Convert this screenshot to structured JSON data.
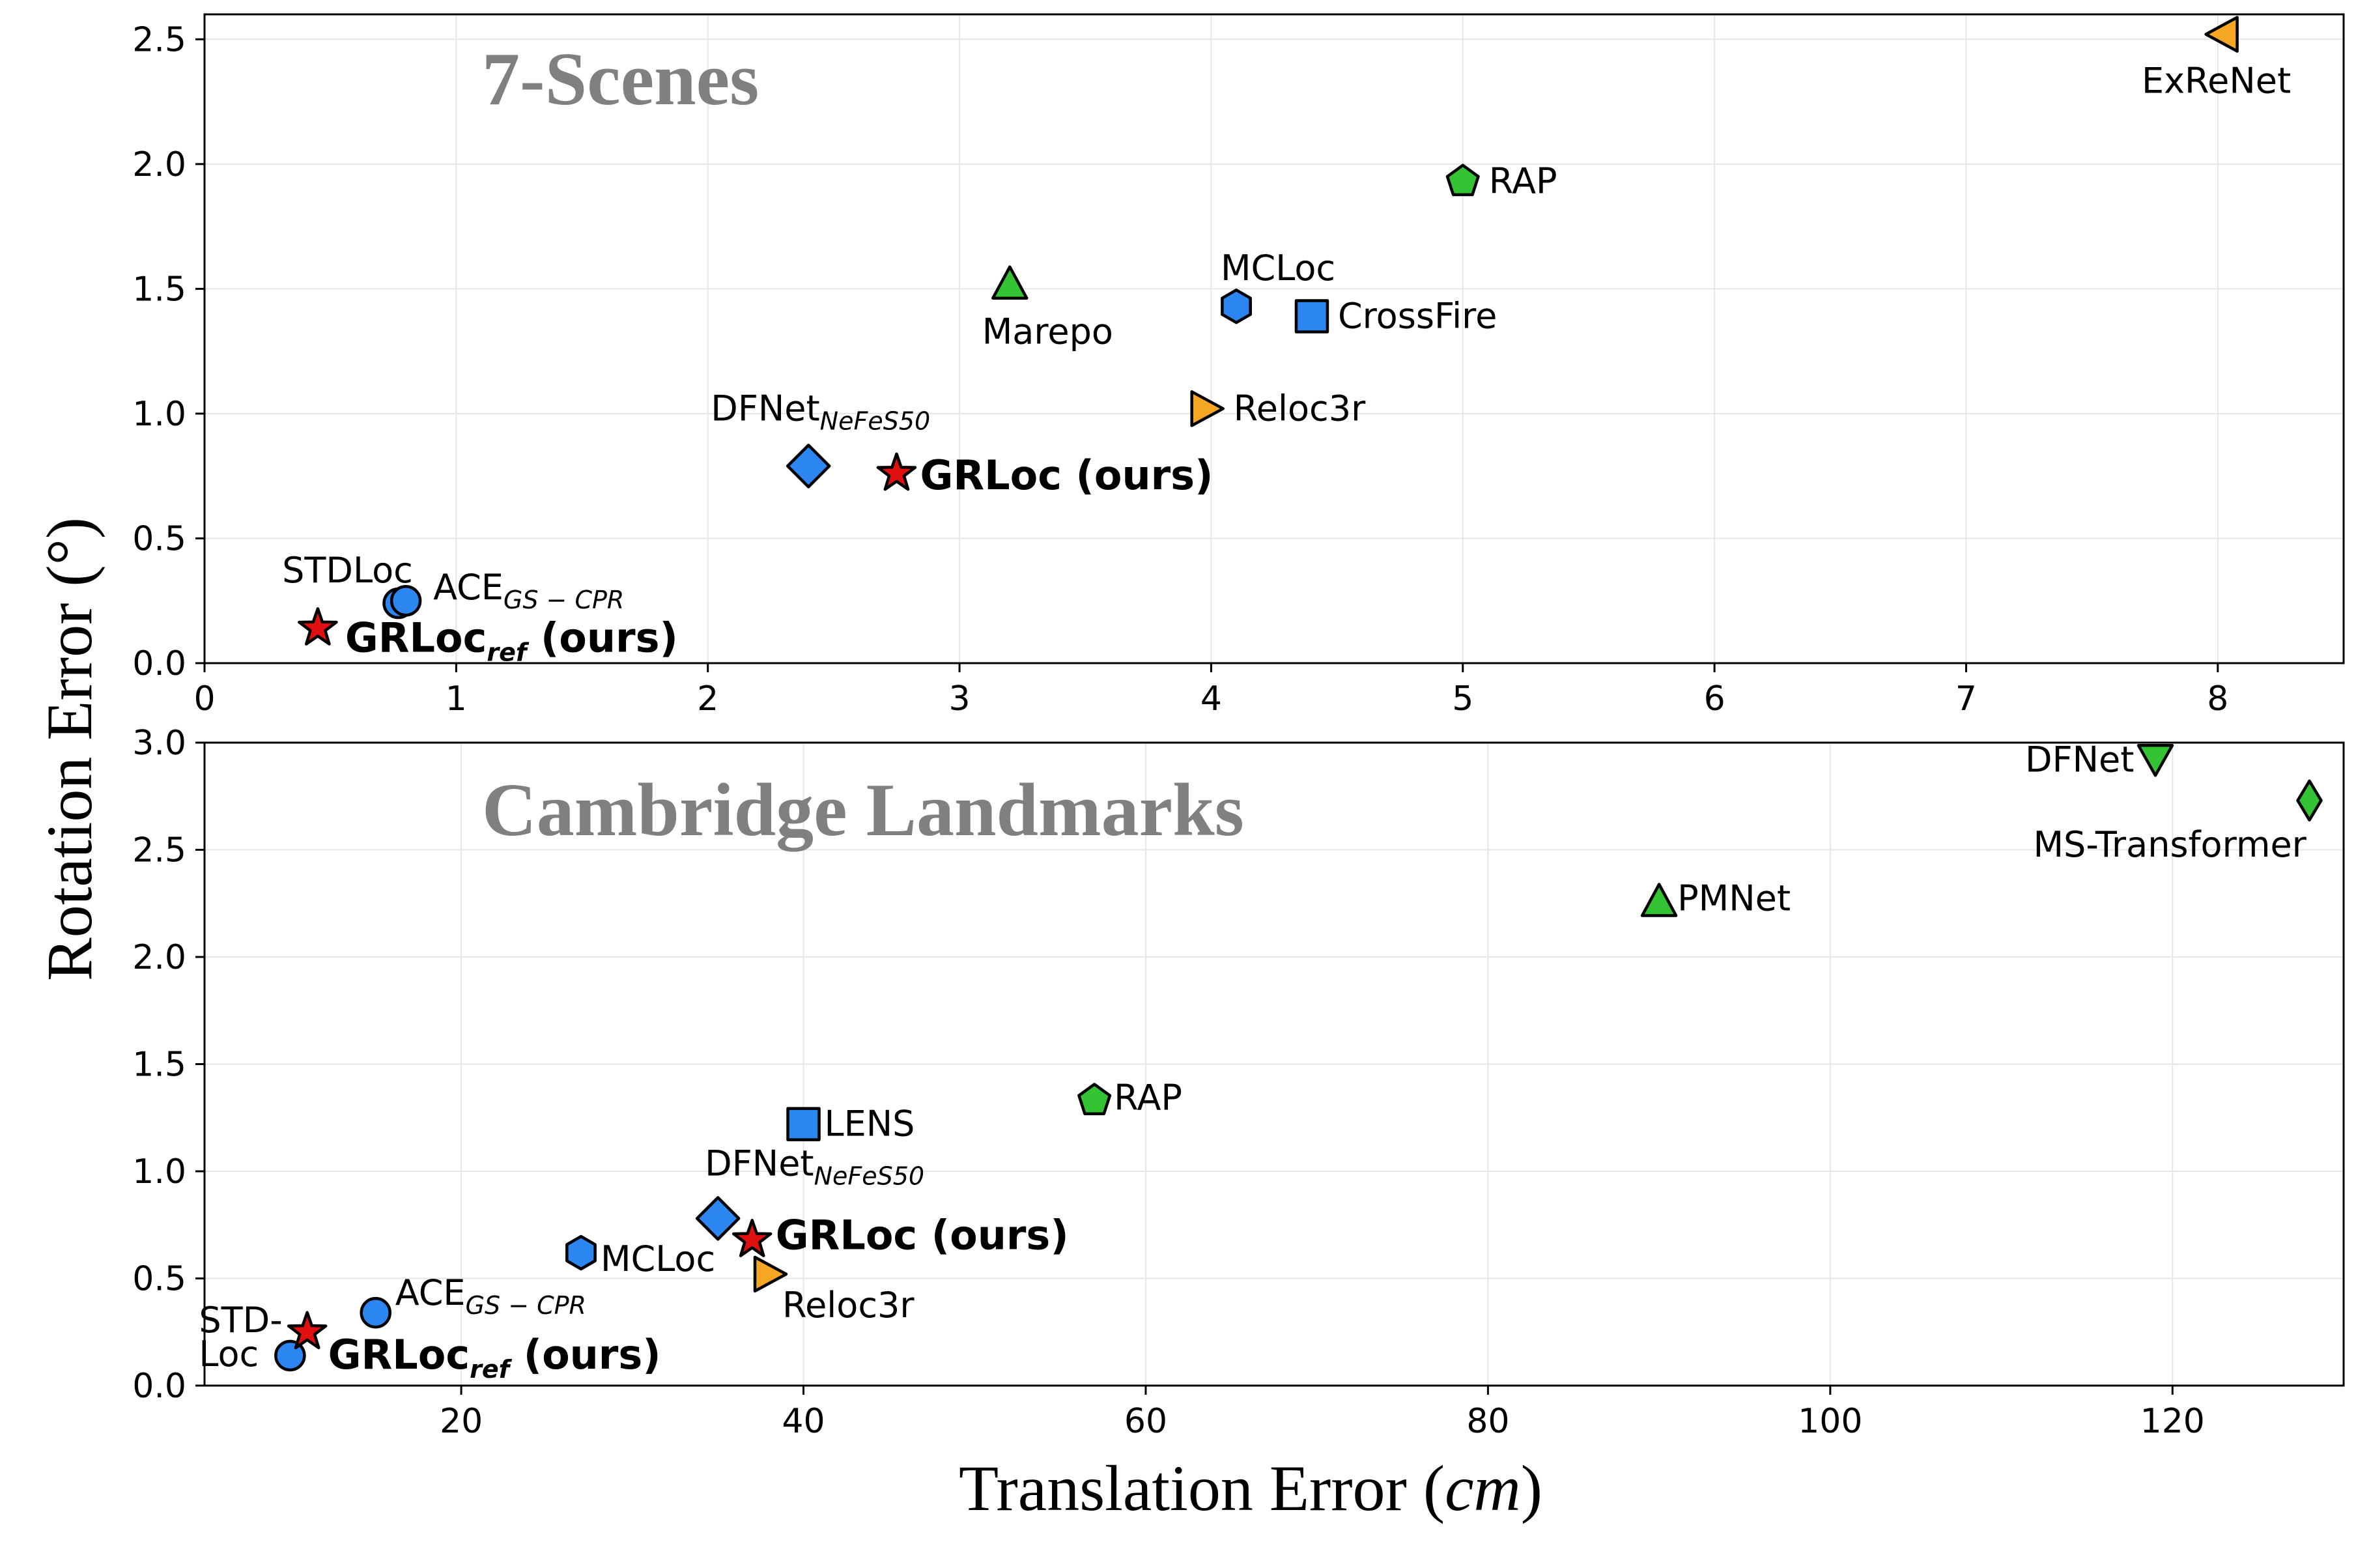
{
  "figure": {
    "ylabel": "Rotation Error (°)",
    "xlabel_main": "Translation Error (",
    "xlabel_unit": "cm",
    "xlabel_close": ")"
  },
  "colors": {
    "blue": "#2b86f2",
    "green": "#33c333",
    "orange": "#f5a623",
    "red": "#e01010"
  },
  "chart_data": [
    {
      "type": "scatter",
      "title": "7-Scenes",
      "xlabel": "Translation Error (cm)",
      "ylabel": "Rotation Error (°)",
      "xlim": [
        0,
        8.5
      ],
      "ylim": [
        0,
        2.6
      ],
      "xticks": [
        0,
        1,
        2,
        3,
        4,
        5,
        6,
        7,
        8
      ],
      "yticks": [
        0.0,
        0.5,
        1.0,
        1.5,
        2.0,
        2.5
      ],
      "xtick_labels": [
        "0",
        "1",
        "2",
        "3",
        "4",
        "5",
        "6",
        "7",
        "8"
      ],
      "ytick_labels": [
        "0.0",
        "0.5",
        "1.0",
        "1.5",
        "2.0",
        "2.5"
      ],
      "grid": true,
      "points": [
        {
          "method": "ExReNet",
          "x": 8.02,
          "y": 2.52,
          "marker": "triangle-left",
          "color": "orange",
          "label": "ExReNet"
        },
        {
          "method": "RAP",
          "x": 5.0,
          "y": 1.93,
          "marker": "pentagon",
          "color": "green",
          "label": "RAP"
        },
        {
          "method": "Marepo",
          "x": 3.2,
          "y": 1.52,
          "marker": "triangle-up",
          "color": "green",
          "label": "Marepo"
        },
        {
          "method": "MCLoc",
          "x": 4.1,
          "y": 1.43,
          "marker": "hexagon",
          "color": "blue",
          "label": "MCLoc"
        },
        {
          "method": "CrossFire",
          "x": 4.4,
          "y": 1.39,
          "marker": "square",
          "color": "blue",
          "label": "CrossFire"
        },
        {
          "method": "Reloc3r",
          "x": 3.98,
          "y": 1.02,
          "marker": "triangle-right",
          "color": "orange",
          "label": "Reloc3r"
        },
        {
          "method": "DFNet_NeFeS50",
          "x": 2.4,
          "y": 0.79,
          "marker": "diamond",
          "color": "blue",
          "label": "DFNet",
          "label_sub": "NeFeS50"
        },
        {
          "method": "GRLoc (ours)",
          "x": 2.75,
          "y": 0.76,
          "marker": "star",
          "color": "red",
          "label": "GRLoc (ours)"
        },
        {
          "method": "STDLoc",
          "x": 0.77,
          "y": 0.24,
          "marker": "circle",
          "color": "blue",
          "label": "STDLoc"
        },
        {
          "method": "ACE_GS-CPR",
          "x": 0.8,
          "y": 0.25,
          "marker": "circle",
          "color": "blue",
          "label": "ACE",
          "label_sub": "GS − CPR"
        },
        {
          "method": "GRLoc_ref (ours)",
          "x": 0.45,
          "y": 0.14,
          "marker": "star",
          "color": "red",
          "label": "GRLoc",
          "label_sub": "ref",
          "label_suffix": " (ours)"
        }
      ]
    },
    {
      "type": "scatter",
      "title": "Cambridge Landmarks",
      "xlabel": "Translation Error (cm)",
      "ylabel": "Rotation Error (°)",
      "xlim": [
        5,
        130
      ],
      "ylim": [
        0,
        3.0
      ],
      "xticks": [
        20,
        40,
        60,
        80,
        100,
        120
      ],
      "yticks": [
        0.0,
        0.5,
        1.0,
        1.5,
        2.0,
        2.5,
        3.0
      ],
      "xtick_labels": [
        "20",
        "40",
        "60",
        "80",
        "100",
        "120"
      ],
      "ytick_labels": [
        "0.0",
        "0.5",
        "1.0",
        "1.5",
        "2.0",
        "2.5",
        "3.0"
      ],
      "grid": true,
      "points": [
        {
          "method": "DFNet",
          "x": 119,
          "y": 2.92,
          "marker": "triangle-down",
          "color": "green",
          "label": "DFNet"
        },
        {
          "method": "MS-Transformer",
          "x": 128,
          "y": 2.73,
          "marker": "thin-diamond",
          "color": "green",
          "label": "MS-Transformer"
        },
        {
          "method": "PMNet",
          "x": 90,
          "y": 2.26,
          "marker": "triangle-up",
          "color": "green",
          "label": "PMNet"
        },
        {
          "method": "RAP",
          "x": 57,
          "y": 1.33,
          "marker": "pentagon",
          "color": "green",
          "label": "RAP"
        },
        {
          "method": "LENS",
          "x": 40,
          "y": 1.22,
          "marker": "square",
          "color": "blue",
          "label": "LENS"
        },
        {
          "method": "DFNet_NeFeS50",
          "x": 35,
          "y": 0.78,
          "marker": "diamond",
          "color": "blue",
          "label": "DFNet",
          "label_sub": "NeFeS50"
        },
        {
          "method": "GRLoc (ours)",
          "x": 37,
          "y": 0.68,
          "marker": "star",
          "color": "red",
          "label": "GRLoc (ours)"
        },
        {
          "method": "MCLoc",
          "x": 27,
          "y": 0.62,
          "marker": "hexagon",
          "color": "blue",
          "label": "MCLoc"
        },
        {
          "method": "Reloc3r",
          "x": 38,
          "y": 0.52,
          "marker": "triangle-right",
          "color": "orange",
          "label": "Reloc3r"
        },
        {
          "method": "ACE_GS-CPR",
          "x": 15,
          "y": 0.34,
          "marker": "circle",
          "color": "blue",
          "label": "ACE",
          "label_sub": "GS − CPR"
        },
        {
          "method": "STDLoc",
          "x": 10,
          "y": 0.14,
          "marker": "circle",
          "color": "blue",
          "label": "STD-\nLoc"
        },
        {
          "method": "GRLoc_ref (ours)",
          "x": 11,
          "y": 0.25,
          "marker": "star",
          "color": "red",
          "label": "GRLoc",
          "label_sub": "ref",
          "label_suffix": " (ours)"
        }
      ]
    }
  ]
}
